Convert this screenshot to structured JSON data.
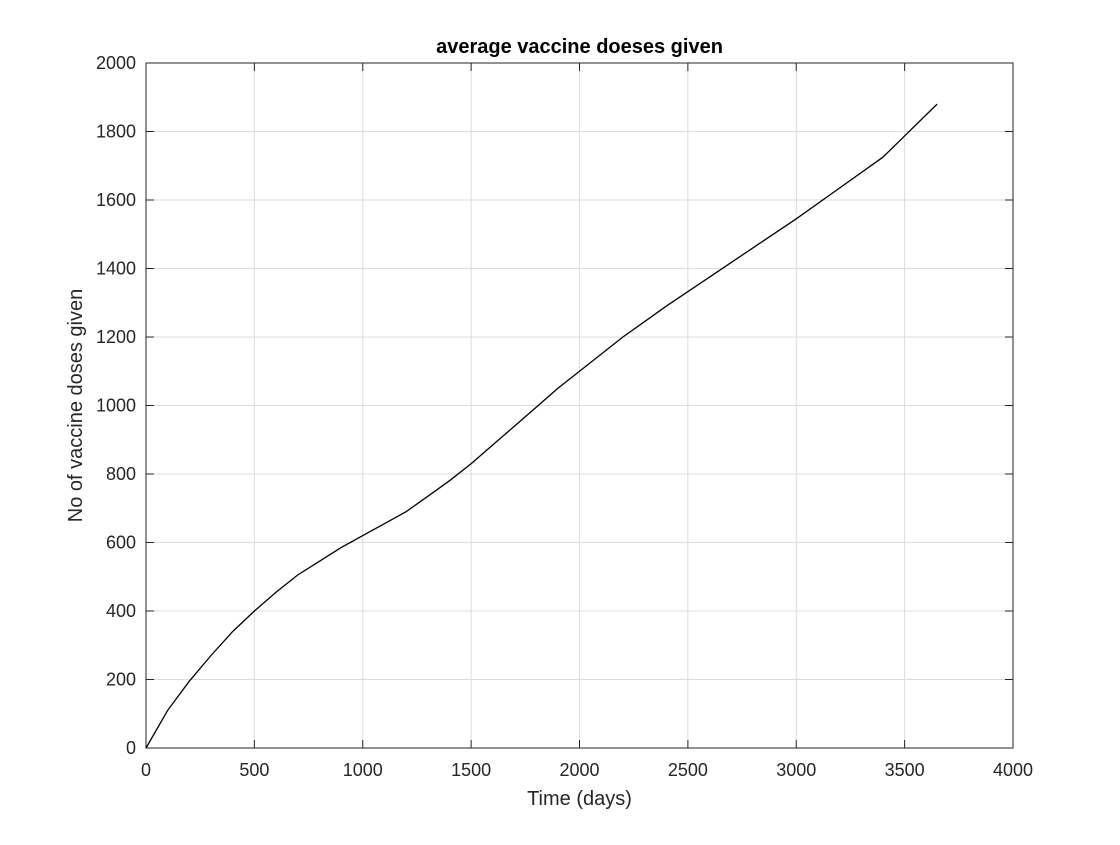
{
  "chart_data": {
    "type": "line",
    "title": "average vaccine doeses given",
    "xlabel": "Time (days)",
    "ylabel": "No of vaccine doses given",
    "xlim": [
      0,
      4000
    ],
    "ylim": [
      0,
      2000
    ],
    "xticks": [
      0,
      500,
      1000,
      1500,
      2000,
      2500,
      3000,
      3500,
      4000
    ],
    "yticks": [
      0,
      200,
      400,
      600,
      800,
      1000,
      1200,
      1400,
      1600,
      1800,
      2000
    ],
    "grid": true,
    "series": [
      {
        "color": "#000000",
        "x": [
          0,
          100,
          200,
          300,
          400,
          500,
          600,
          700,
          800,
          900,
          1000,
          1100,
          1200,
          1300,
          1400,
          1500,
          1600,
          1700,
          1800,
          1900,
          2000,
          2200,
          2400,
          2600,
          2800,
          3000,
          3200,
          3400,
          3650
        ],
        "y": [
          0,
          110,
          195,
          270,
          340,
          400,
          455,
          505,
          545,
          585,
          620,
          655,
          690,
          735,
          780,
          830,
          885,
          940,
          995,
          1050,
          1100,
          1200,
          1290,
          1375,
          1460,
          1545,
          1635,
          1725,
          1880
        ]
      }
    ]
  }
}
